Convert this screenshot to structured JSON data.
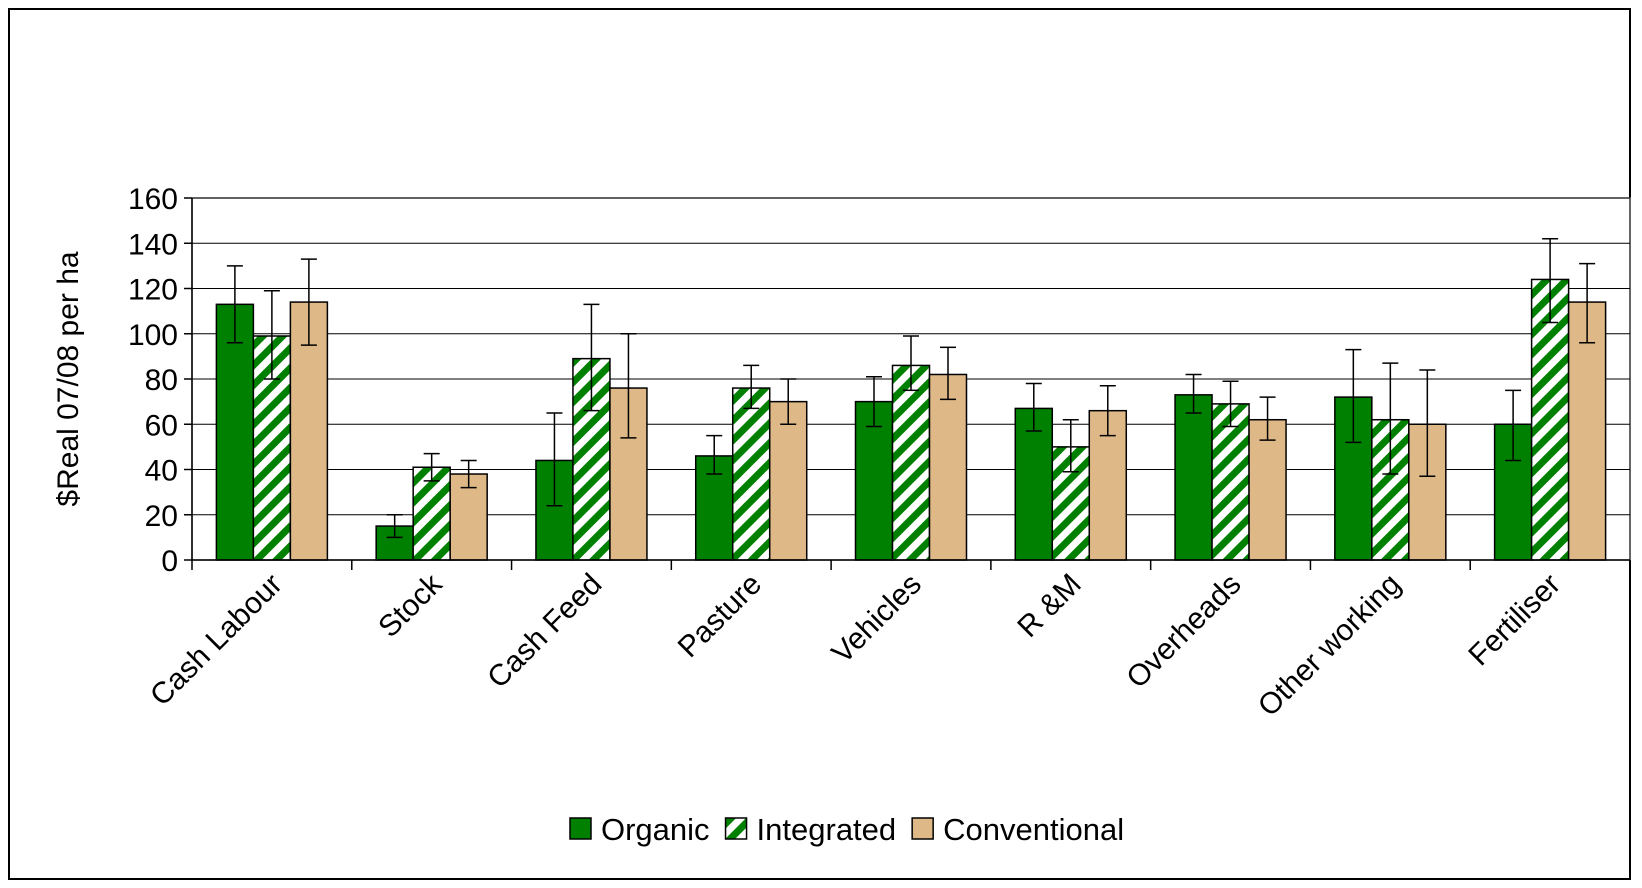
{
  "chart_data": {
    "type": "bar",
    "title": "",
    "xlabel": "",
    "ylabel": "$Real 07/08 per ha",
    "ylim": [
      0,
      160
    ],
    "yticks": [
      "0",
      "20",
      "40",
      "60",
      "80",
      "100",
      "120",
      "140",
      "160"
    ],
    "grid": true,
    "legend_position": "bottom",
    "categories": [
      "Cash Labour",
      "Stock",
      "Cash Feed",
      "Pasture",
      "Vehicles",
      "R &M",
      "Overheads",
      "Other working",
      "Fertiliser"
    ],
    "series": [
      {
        "name": "Organic",
        "color": "#008000",
        "pattern": "solid",
        "values": [
          113,
          15,
          44,
          46,
          70,
          67,
          73,
          72,
          60
        ],
        "error_low": [
          96,
          10,
          24,
          38,
          59,
          57,
          65,
          52,
          44
        ],
        "error_high": [
          130,
          20,
          65,
          55,
          81,
          78,
          82,
          93,
          75
        ]
      },
      {
        "name": "Integrated",
        "color": "#008000",
        "pattern": "diagonal-stripes",
        "values": [
          99,
          41,
          89,
          76,
          86,
          50,
          69,
          62,
          124
        ],
        "error_low": [
          80,
          35,
          66,
          67,
          75,
          39,
          59,
          38,
          105
        ],
        "error_high": [
          119,
          47,
          113,
          86,
          99,
          62,
          79,
          87,
          142
        ]
      },
      {
        "name": "Conventional",
        "color": "#deb887",
        "pattern": "solid",
        "values": [
          114,
          38,
          76,
          70,
          82,
          66,
          62,
          60,
          114
        ],
        "error_low": [
          95,
          32,
          54,
          60,
          71,
          55,
          53,
          37,
          96
        ],
        "error_high": [
          133,
          44,
          100,
          80,
          94,
          77,
          72,
          84,
          131
        ]
      }
    ]
  }
}
